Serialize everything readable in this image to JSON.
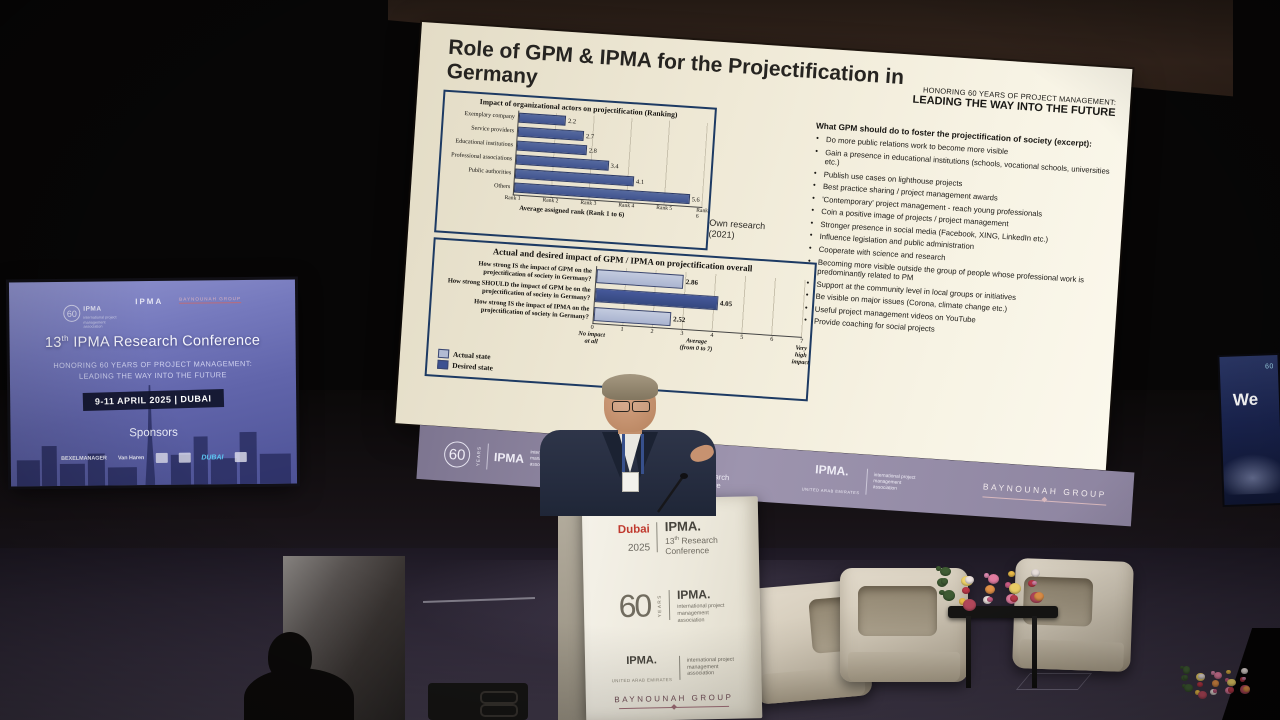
{
  "slide": {
    "title": "Role of GPM & IPMA for the Projectification in Germany",
    "honoring_small": "HONORING 60 YEARS OF PROJECT MANAGEMENT:",
    "honoring_big": "LEADING THE WAY INTO THE FUTURE",
    "own_research": "Own research\n(2021)",
    "excerpt_heading": "What GPM should do to foster the projectification of society (excerpt):",
    "bullets": [
      "Do more public relations work to become more visible",
      "Gain a presence in educational institutions (schools, vocational schools, universities etc.)",
      "Publish use cases on lighthouse projects",
      "Best practice sharing / project management awards",
      "'Contemporary' project management - reach young professionals",
      "Coin a positive image of projects / project management",
      "Stronger presence in social media (Facebook, XING, LinkedIn etc.)",
      "Influence legislation and public administration",
      "Cooperate with science and research",
      "Becoming more visible outside the group of people whose professional work is predominantly related to PM",
      "Support at the community level in local groups or initiatives",
      "Be visible on major issues (Corona, climate change etc.)",
      "Useful project management videos on YouTube",
      "Provide coaching for social projects"
    ]
  },
  "chart_data": [
    {
      "type": "bar",
      "orientation": "horizontal",
      "title": "Impact of organizational actors on projectification (Ranking)",
      "categories": [
        "Exemplary company",
        "Service providers",
        "Educational institutions",
        "Professional associations",
        "Public authorities",
        "Others"
      ],
      "values": [
        2.2,
        2.7,
        2.8,
        3.4,
        4.1,
        5.6
      ],
      "xlabel": "Average assigned rank (Rank 1 to 6)",
      "x_ticks": [
        "Rank 1",
        "Rank 2",
        "Rank 3",
        "Rank 4",
        "Rank 5",
        "Rank 6"
      ],
      "xlim": [
        1,
        6
      ],
      "grid": true,
      "bar_color": "#41548f"
    },
    {
      "type": "bar",
      "orientation": "horizontal",
      "title": "Actual and desired impact of GPM / IPMA on projectification overall",
      "categories": [
        "How strong IS the impact of GPM on the projectification of society in Germany?",
        "How strong SHOULD the impact of GPM be on the projectification of society in Germany?",
        "How strong IS the impact of IPMA on the projectification of society in Germany?"
      ],
      "values": [
        2.86,
        4.05,
        2.52
      ],
      "states": [
        "actual",
        "desired",
        "actual"
      ],
      "legend": [
        "Actual state",
        "Desired state"
      ],
      "legend_colors": {
        "actual": "#b2bbd4",
        "desired": "#3c5191"
      },
      "x_ticks": [
        "0",
        "1",
        "2",
        "3",
        "4",
        "5",
        "6",
        "7"
      ],
      "xlim": [
        0,
        7
      ],
      "grid": true,
      "axis_annotations": [
        {
          "pos": 0,
          "text": "No impact\nat all"
        },
        {
          "pos": 3.5,
          "text": "Average\n(from 0 to 7)"
        },
        {
          "pos": 7,
          "text": "Very high\nimpact"
        }
      ]
    }
  ],
  "banner": {
    "sixty": "60",
    "years": "YEARS",
    "ipma1": "IPMA",
    "ipma1_sub": "international project management association",
    "dubai": "Dubai",
    "year": "2025",
    "conf_brand": "IPMA.",
    "conf_num": "13",
    "conf_sup": "th",
    "conf_rest": " Research Conference",
    "ipma_uae": "IPMA.",
    "uae": "UNITED ARAB EMIRATES",
    "ipma_uae_sub": "international project management association",
    "group": "BAYNOUNAH GROUP"
  },
  "left_screen": {
    "logo_sixty": "60",
    "logo_ipma1": "IPMA",
    "logo_ipma1_sub": "international project management association",
    "logo_ipma2": "IPMA",
    "logo_group": "BAYNOUNAH GROUP",
    "title_num": "13",
    "title_sup": "th",
    "title_rest": " IPMA Research Conference",
    "sub_line1": "HONORING 60 YEARS OF PROJECT MANAGEMENT:",
    "sub_line2": "LEADING THE WAY INTO THE FUTURE",
    "date_badge": "9-11 APRIL 2025 | DUBAI",
    "sponsors_label": "Sponsors",
    "sponsors": [
      "BEXELMANAGER",
      "Van Haren",
      "",
      "",
      "DUBAI",
      ""
    ]
  },
  "right_screen": {
    "sixty": "60",
    "partial_text": "We"
  },
  "podium": {
    "dubai": "Dubai",
    "year": "2025",
    "brand1": "IPMA.",
    "conf_num": "13",
    "conf_sup": "th",
    "conf_rest": " Research Conference",
    "sixty": "60",
    "years": "YEARS",
    "brand2": "IPMA.",
    "brand2_sub": "international project management association",
    "brand3": "IPMA.",
    "brand3_sub": "UNITED ARAB EMIRATES",
    "brand3_right": "international project management association",
    "group": "BAYNOUNAH GROUP"
  },
  "colors": {
    "slide_bg": "#efe9d6",
    "bar_blue": "#41548f",
    "actual_state": "#b2bbd4",
    "desired_state": "#3c5191",
    "banner_purple": "#9d94ae",
    "left_screen_blue": "#6165ab",
    "chair_cream": "#d4cbba",
    "floor": "#342d3d"
  }
}
